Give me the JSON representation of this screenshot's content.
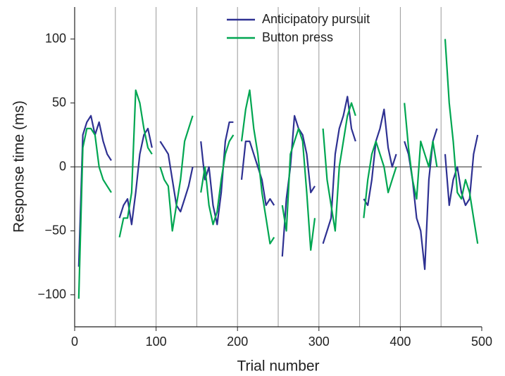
{
  "chart_data": {
    "type": "line",
    "x_label": "Trial number",
    "y_label": "Response time (ms)",
    "x": [
      5,
      10,
      15,
      20,
      25,
      30,
      35,
      40,
      45,
      50,
      55,
      60,
      65,
      70,
      75,
      80,
      85,
      90,
      95,
      100,
      105,
      110,
      115,
      120,
      125,
      130,
      135,
      140,
      145,
      150,
      155,
      160,
      165,
      170,
      175,
      180,
      185,
      190,
      195,
      200,
      205,
      210,
      215,
      220,
      225,
      230,
      235,
      240,
      245,
      250,
      255,
      260,
      265,
      270,
      275,
      280,
      285,
      290,
      295,
      300,
      305,
      310,
      315,
      320,
      325,
      330,
      335,
      340,
      345,
      350,
      355,
      360,
      365,
      370,
      375,
      380,
      385,
      390,
      395,
      400,
      405,
      410,
      415,
      420,
      425,
      430,
      435,
      440,
      445,
      450,
      455,
      460,
      465,
      470,
      475,
      480,
      485,
      490,
      495
    ],
    "series": [
      {
        "name": "Anticipatory pursuit",
        "color": "#2e3192",
        "values": [
          -78,
          25,
          35,
          40,
          25,
          35,
          20,
          10,
          5,
          null,
          -40,
          -30,
          -25,
          -45,
          -20,
          10,
          25,
          30,
          15,
          null,
          20,
          15,
          10,
          -10,
          -30,
          -35,
          -25,
          -15,
          0,
          null,
          20,
          -10,
          0,
          -30,
          -45,
          -20,
          20,
          35,
          35,
          null,
          -10,
          20,
          20,
          10,
          0,
          -10,
          -30,
          -25,
          -30,
          null,
          -70,
          -25,
          0,
          40,
          30,
          25,
          10,
          -20,
          -15,
          null,
          -60,
          -50,
          -40,
          10,
          30,
          40,
          55,
          30,
          20,
          null,
          -25,
          -30,
          -10,
          20,
          30,
          45,
          15,
          0,
          10,
          null,
          20,
          10,
          -10,
          -40,
          -50,
          -80,
          -10,
          20,
          30,
          null,
          10,
          -30,
          -10,
          0,
          -20,
          -30,
          -25,
          10,
          25
        ]
      },
      {
        "name": "Button press",
        "color": "#00a651",
        "values": [
          -103,
          15,
          30,
          30,
          25,
          0,
          -10,
          -15,
          -20,
          null,
          -55,
          -40,
          -40,
          -20,
          60,
          50,
          30,
          15,
          10,
          null,
          0,
          -10,
          -15,
          -50,
          -30,
          -10,
          20,
          30,
          40,
          null,
          -20,
          0,
          -30,
          -45,
          -35,
          -10,
          10,
          20,
          25,
          null,
          20,
          45,
          60,
          30,
          10,
          -20,
          -40,
          -60,
          -55,
          null,
          -30,
          -50,
          10,
          20,
          30,
          20,
          -20,
          -65,
          -40,
          null,
          30,
          -10,
          -30,
          -50,
          0,
          20,
          40,
          50,
          40,
          null,
          -40,
          -10,
          10,
          20,
          10,
          0,
          -20,
          -10,
          0,
          null,
          50,
          15,
          -10,
          -25,
          20,
          10,
          0,
          20,
          0,
          null,
          100,
          50,
          20,
          -20,
          -25,
          -10,
          -20,
          -40,
          -60
        ]
      }
    ],
    "xlim": [
      0,
      500
    ],
    "xticks": [
      0,
      100,
      200,
      300,
      400,
      500
    ],
    "ylim": [
      -125,
      125
    ],
    "yticks": [
      {
        "value": -100,
        "label": "−100"
      },
      {
        "value": -50,
        "label": "−50"
      },
      0,
      50,
      100
    ],
    "vlines": [
      50,
      100,
      150,
      200,
      250,
      300,
      350,
      400,
      450
    ],
    "legend": "top"
  }
}
